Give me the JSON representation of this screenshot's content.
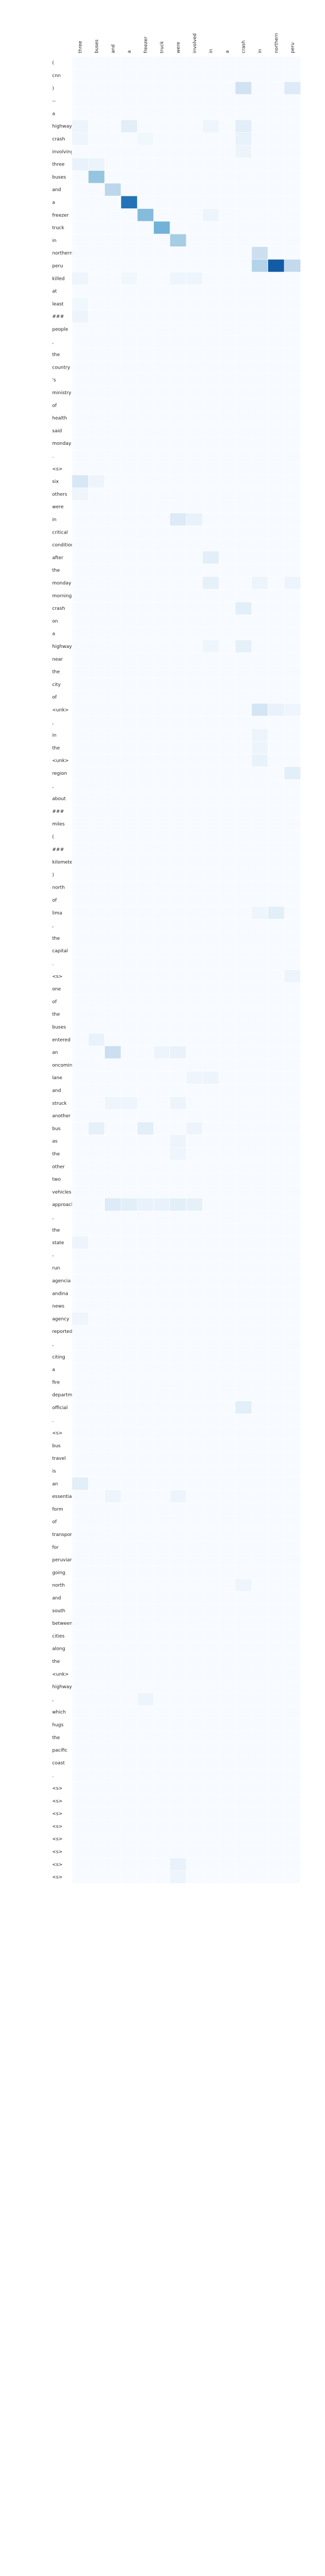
{
  "chart_data": {
    "type": "heatmap",
    "colormap": [
      "#f7fbff",
      "#deebf7",
      "#c6dbef",
      "#9ecae1",
      "#6baed6",
      "#4292c6",
      "#2171b5",
      "#08519c"
    ],
    "value_range": [
      0,
      1
    ],
    "x_labels": [
      "three",
      "buses",
      "and",
      "a",
      "freezer",
      "truck",
      "were",
      "involved",
      "in",
      "a",
      "crash",
      "in",
      "northern",
      "peru"
    ],
    "y_labels": [
      "(",
      "cnn",
      ")",
      "--",
      "a",
      "highway",
      "crash",
      "involving",
      "three",
      "buses",
      "and",
      "a",
      "freezer",
      "truck",
      "in",
      "northern",
      "peru",
      "killed",
      "at",
      "least",
      "###",
      "people",
      ",",
      "the",
      "country",
      "'s",
      "ministry",
      "of",
      "health",
      "said",
      "monday",
      ".",
      "<s>",
      "six",
      "others",
      "were",
      "in",
      "critical",
      "condition",
      "after",
      "the",
      "monday",
      "morning",
      "crash",
      "on",
      "a",
      "highway",
      "near",
      "the",
      "city",
      "of",
      "<unk>",
      ",",
      "in",
      "the",
      "<unk>",
      "region",
      ",",
      "about",
      "###",
      "miles",
      "(",
      "###",
      "kilometers",
      ")",
      "north",
      "of",
      "lima",
      ",",
      "the",
      "capital",
      ".",
      "<s>",
      "one",
      "of",
      "the",
      "buses",
      "entered",
      "an",
      "oncoming",
      "lane",
      "and",
      "struck",
      "another",
      "bus",
      "as",
      "the",
      "other",
      "two",
      "vehicles",
      "approached",
      ",",
      "the",
      "state",
      "-",
      "run",
      "agencia",
      "andina",
      "news",
      "agency",
      "reported",
      ",",
      "citing",
      "a",
      "fire",
      "department",
      "official",
      ".",
      "<s>",
      "bus",
      "travel",
      "is",
      "an",
      "essential",
      "form",
      "of",
      "transportation",
      "for",
      "peruvians",
      "going",
      "north",
      "and",
      "south",
      "between",
      "cities",
      "along",
      "the",
      "<unk>",
      "highway",
      ",",
      "which",
      "hugs",
      "the",
      "pacific",
      "coast",
      ".",
      "<s>",
      "<s>",
      "<s>",
      "<s>",
      "<s>",
      "<s>",
      "<s>",
      "<s>"
    ],
    "cells": [
      [
        2,
        10,
        0.22
      ],
      [
        2,
        13,
        0.15
      ],
      [
        5,
        0,
        0.06
      ],
      [
        5,
        3,
        0.12
      ],
      [
        5,
        8,
        0.05
      ],
      [
        5,
        10,
        0.12
      ],
      [
        6,
        0,
        0.05
      ],
      [
        6,
        4,
        0.04
      ],
      [
        6,
        10,
        0.08
      ],
      [
        7,
        10,
        0.06
      ],
      [
        8,
        0,
        0.08
      ],
      [
        8,
        1,
        0.07
      ],
      [
        9,
        1,
        0.45
      ],
      [
        10,
        2,
        0.32
      ],
      [
        11,
        3,
        0.85
      ],
      [
        12,
        4,
        0.5
      ],
      [
        12,
        8,
        0.06
      ],
      [
        13,
        5,
        0.55
      ],
      [
        14,
        6,
        0.4
      ],
      [
        15,
        11,
        0.25
      ],
      [
        16,
        11,
        0.35
      ],
      [
        16,
        12,
        0.95
      ],
      [
        16,
        13,
        0.3
      ],
      [
        17,
        0,
        0.05
      ],
      [
        17,
        3,
        0.04
      ],
      [
        17,
        6,
        0.05
      ],
      [
        17,
        7,
        0.05
      ],
      [
        19,
        0,
        0.04
      ],
      [
        20,
        0,
        0.06
      ],
      [
        33,
        0,
        0.18
      ],
      [
        33,
        1,
        0.06
      ],
      [
        34,
        0,
        0.05
      ],
      [
        36,
        6,
        0.15
      ],
      [
        36,
        7,
        0.08
      ],
      [
        39,
        8,
        0.12
      ],
      [
        41,
        8,
        0.1
      ],
      [
        41,
        11,
        0.06
      ],
      [
        41,
        13,
        0.06
      ],
      [
        43,
        10,
        0.12
      ],
      [
        46,
        10,
        0.1
      ],
      [
        46,
        8,
        0.05
      ],
      [
        51,
        11,
        0.2
      ],
      [
        51,
        12,
        0.08
      ],
      [
        51,
        13,
        0.05
      ],
      [
        53,
        11,
        0.06
      ],
      [
        54,
        11,
        0.06
      ],
      [
        55,
        11,
        0.08
      ],
      [
        56,
        13,
        0.12
      ],
      [
        67,
        12,
        0.12
      ],
      [
        67,
        11,
        0.05
      ],
      [
        72,
        13,
        0.06
      ],
      [
        77,
        1,
        0.08
      ],
      [
        78,
        2,
        0.25
      ],
      [
        78,
        5,
        0.06
      ],
      [
        78,
        6,
        0.08
      ],
      [
        80,
        7,
        0.05
      ],
      [
        80,
        8,
        0.06
      ],
      [
        82,
        2,
        0.05
      ],
      [
        82,
        3,
        0.05
      ],
      [
        82,
        6,
        0.06
      ],
      [
        84,
        1,
        0.1
      ],
      [
        84,
        4,
        0.12
      ],
      [
        84,
        7,
        0.06
      ],
      [
        85,
        6,
        0.06
      ],
      [
        86,
        6,
        0.05
      ],
      [
        90,
        2,
        0.15
      ],
      [
        90,
        3,
        0.12
      ],
      [
        90,
        4,
        0.08
      ],
      [
        90,
        5,
        0.08
      ],
      [
        90,
        6,
        0.12
      ],
      [
        90,
        7,
        0.1
      ],
      [
        93,
        0,
        0.06
      ],
      [
        99,
        0,
        0.05
      ],
      [
        106,
        10,
        0.12
      ],
      [
        112,
        0,
        0.12
      ],
      [
        113,
        2,
        0.06
      ],
      [
        113,
        6,
        0.06
      ],
      [
        120,
        10,
        0.05
      ],
      [
        129,
        4,
        0.06
      ],
      [
        142,
        6,
        0.08
      ],
      [
        143,
        6,
        0.06
      ],
      [
        144,
        6,
        0.06
      ],
      [
        145,
        6,
        0.08
      ],
      [
        146,
        6,
        0.06
      ],
      [
        147,
        6,
        0.1
      ],
      [
        148,
        6,
        0.06
      ],
      [
        149,
        6,
        0.12
      ]
    ]
  }
}
